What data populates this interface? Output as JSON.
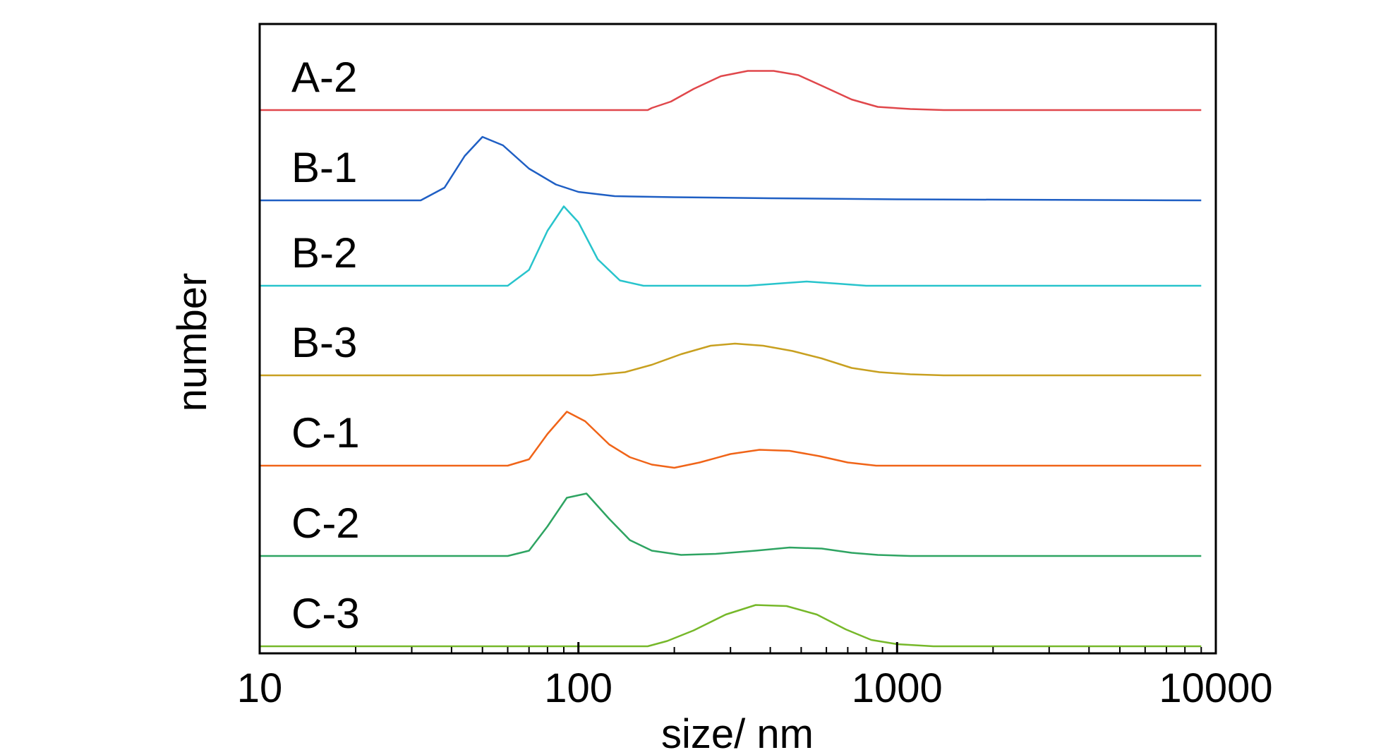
{
  "chart_data": {
    "type": "line",
    "xlabel": "size/ nm",
    "ylabel": "number",
    "x_scale": "log",
    "xlim": [
      10,
      10000
    ],
    "x_ticks": [
      10,
      100,
      1000,
      10000
    ],
    "x_tick_labels": [
      "10",
      "100",
      "1000",
      "10000"
    ],
    "y_ticks_shown": false,
    "grid": false,
    "layout": "stacked / vertically offset traces",
    "series": [
      {
        "name": "A-2",
        "color": "#e0474b",
        "points": [
          [
            10,
            0
          ],
          [
            165,
            0
          ],
          [
            170,
            0.02
          ],
          [
            195,
            0.08
          ],
          [
            230,
            0.2
          ],
          [
            280,
            0.32
          ],
          [
            340,
            0.37
          ],
          [
            410,
            0.37
          ],
          [
            490,
            0.33
          ],
          [
            590,
            0.22
          ],
          [
            720,
            0.1
          ],
          [
            870,
            0.03
          ],
          [
            1100,
            0.01
          ],
          [
            1400,
            0
          ],
          [
            9000,
            0
          ]
        ]
      },
      {
        "name": "B-1",
        "color": "#1f5fc4",
        "points": [
          [
            10,
            0
          ],
          [
            32,
            0
          ],
          [
            38,
            0.12
          ],
          [
            44,
            0.42
          ],
          [
            50,
            0.6
          ],
          [
            58,
            0.52
          ],
          [
            70,
            0.3
          ],
          [
            85,
            0.15
          ],
          [
            100,
            0.08
          ],
          [
            130,
            0.04
          ],
          [
            200,
            0.03
          ],
          [
            400,
            0.02
          ],
          [
            1000,
            0.01
          ],
          [
            9000,
            0
          ]
        ]
      },
      {
        "name": "B-2",
        "color": "#28c4cc",
        "points": [
          [
            10,
            0
          ],
          [
            60,
            0
          ],
          [
            70,
            0.15
          ],
          [
            80,
            0.52
          ],
          [
            90,
            0.75
          ],
          [
            100,
            0.6
          ],
          [
            115,
            0.25
          ],
          [
            135,
            0.05
          ],
          [
            160,
            0
          ],
          [
            340,
            0
          ],
          [
            420,
            0.02
          ],
          [
            520,
            0.04
          ],
          [
            650,
            0.02
          ],
          [
            800,
            0
          ],
          [
            9000,
            0
          ]
        ]
      },
      {
        "name": "B-3",
        "color": "#c8a020",
        "points": [
          [
            10,
            0
          ],
          [
            110,
            0
          ],
          [
            140,
            0.03
          ],
          [
            170,
            0.1
          ],
          [
            210,
            0.2
          ],
          [
            260,
            0.28
          ],
          [
            310,
            0.3
          ],
          [
            380,
            0.28
          ],
          [
            470,
            0.23
          ],
          [
            580,
            0.16
          ],
          [
            720,
            0.07
          ],
          [
            880,
            0.03
          ],
          [
            1100,
            0.01
          ],
          [
            1400,
            0
          ],
          [
            9000,
            0
          ]
        ]
      },
      {
        "name": "C-1",
        "color": "#f06418",
        "points": [
          [
            10,
            0
          ],
          [
            60,
            0
          ],
          [
            70,
            0.06
          ],
          [
            80,
            0.3
          ],
          [
            92,
            0.51
          ],
          [
            105,
            0.42
          ],
          [
            125,
            0.2
          ],
          [
            145,
            0.08
          ],
          [
            170,
            0.01
          ],
          [
            200,
            -0.02
          ],
          [
            240,
            0.03
          ],
          [
            300,
            0.11
          ],
          [
            370,
            0.15
          ],
          [
            460,
            0.14
          ],
          [
            570,
            0.09
          ],
          [
            700,
            0.03
          ],
          [
            860,
            0
          ],
          [
            9000,
            0
          ]
        ]
      },
      {
        "name": "C-2",
        "color": "#2ea462",
        "points": [
          [
            10,
            0
          ],
          [
            60,
            0
          ],
          [
            70,
            0.05
          ],
          [
            80,
            0.28
          ],
          [
            92,
            0.55
          ],
          [
            106,
            0.59
          ],
          [
            125,
            0.35
          ],
          [
            145,
            0.15
          ],
          [
            170,
            0.05
          ],
          [
            210,
            0.01
          ],
          [
            270,
            0.02
          ],
          [
            360,
            0.05
          ],
          [
            460,
            0.08
          ],
          [
            580,
            0.07
          ],
          [
            720,
            0.03
          ],
          [
            870,
            0.01
          ],
          [
            1100,
            0
          ],
          [
            9000,
            0
          ]
        ]
      },
      {
        "name": "C-3",
        "color": "#76b82a",
        "points": [
          [
            10,
            0
          ],
          [
            165,
            0
          ],
          [
            190,
            0.05
          ],
          [
            230,
            0.15
          ],
          [
            290,
            0.3
          ],
          [
            360,
            0.39
          ],
          [
            450,
            0.38
          ],
          [
            560,
            0.3
          ],
          [
            690,
            0.16
          ],
          [
            830,
            0.06
          ],
          [
            1000,
            0.02
          ],
          [
            1300,
            0
          ],
          [
            9000,
            0
          ]
        ]
      }
    ]
  }
}
